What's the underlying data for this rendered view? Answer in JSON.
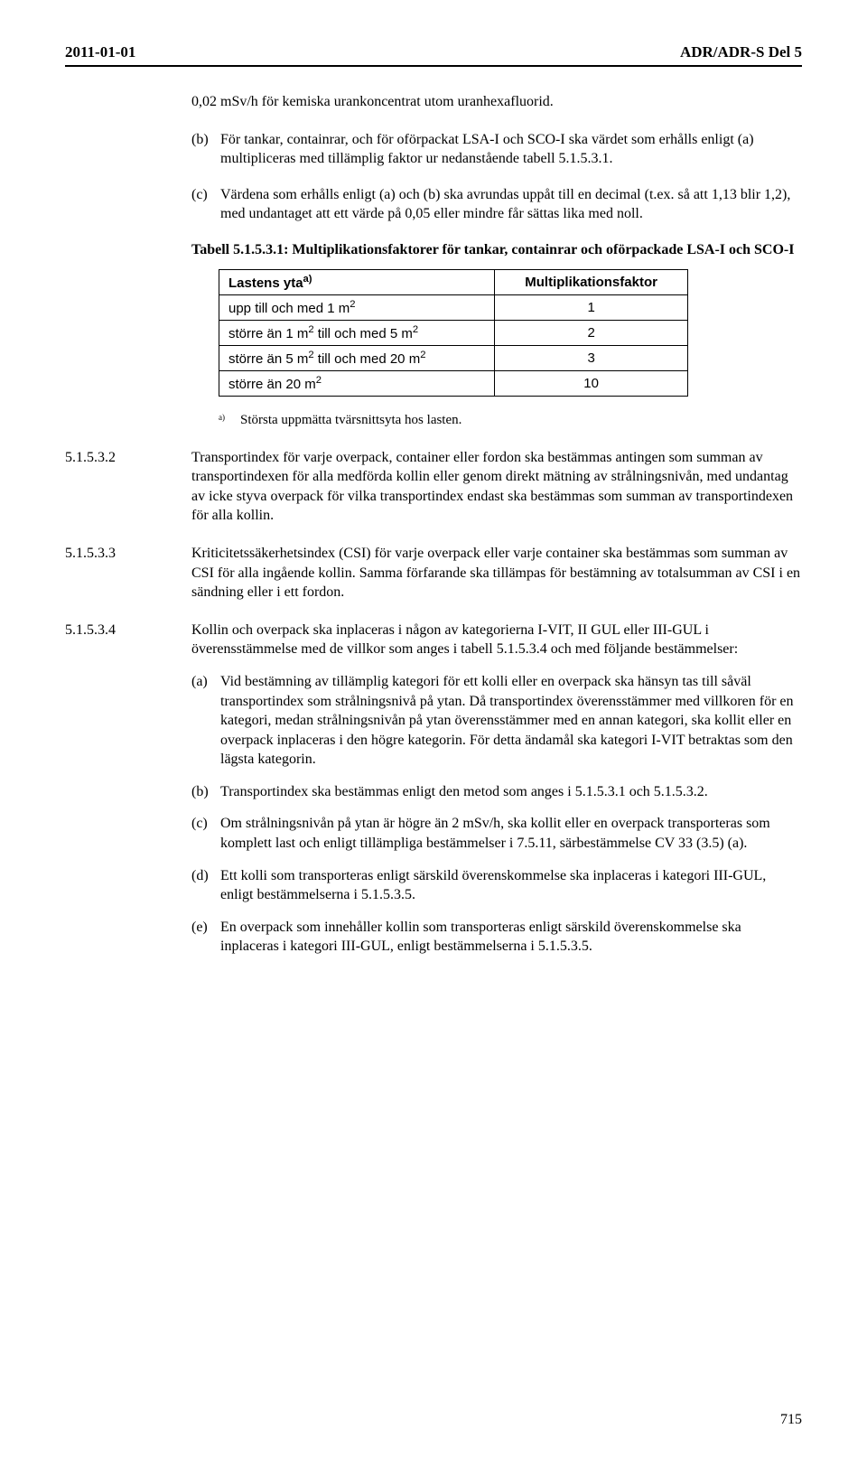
{
  "header": {
    "left": "2011-01-01",
    "right": "ADR/ADR-S Del 5"
  },
  "intro_line": "0,02 mSv/h för kemiska urankoncentrat utom uranhexafluorid.",
  "item_b": {
    "label": "(b)",
    "text": "För tankar, containrar, och för oförpackat LSA-I och SCO-I ska värdet som erhålls enligt (a) multipliceras med tillämplig faktor ur nedanstående tabell 5.1.5.3.1."
  },
  "item_c": {
    "label": "(c)",
    "text": "Värdena som erhålls enligt (a) och (b) ska avrundas uppåt till en decimal (t.ex. så att 1,13 blir 1,2), med undantaget att ett värde på 0,05 eller mindre får sättas lika med noll."
  },
  "table_title": "Tabell 5.1.5.3.1: Multiplikationsfaktorer för tankar, containrar och oförpackade LSA-I och SCO-I",
  "table": {
    "col1_header_base": "Lastens yta",
    "col1_header_sup": "a)",
    "col2_header": "Multiplikationsfaktor",
    "rows": [
      {
        "label_prefix": "upp till och med 1 m",
        "label_sup": "2",
        "label_suffix": "",
        "factor": "1"
      },
      {
        "label_prefix": "större än 1 m",
        "label_sup": "2",
        "label_mid": " till och med 5 m",
        "label_sup2": "2",
        "factor": "2"
      },
      {
        "label_prefix": "större än 5 m",
        "label_sup": "2",
        "label_mid": " till och med 20 m",
        "label_sup2": "2",
        "factor": "3"
      },
      {
        "label_prefix": "större än 20 m",
        "label_sup": "2",
        "label_suffix": "",
        "factor": "10"
      }
    ]
  },
  "footnote": {
    "sup": "a)",
    "text": "Största uppmätta tvärsnittsyta hos lasten."
  },
  "section_5_1_5_3_2": {
    "num": "5.1.5.3.2",
    "text": "Transportindex för varje overpack, container eller fordon ska bestämmas antingen som summan av transportindexen för alla medförda kollin eller genom direkt mätning av strålningsnivån, med undantag av icke styva overpack för vilka transportindex endast ska bestämmas som summan av transportindexen för alla kollin."
  },
  "section_5_1_5_3_3": {
    "num": "5.1.5.3.3",
    "text": "Kriticitetssäkerhetsindex (CSI) för varje overpack eller varje container ska bestämmas som summan av CSI för alla ingående kollin. Samma förfarande ska tillämpas för bestämning av totalsumman av CSI i en sändning eller i ett fordon."
  },
  "section_5_1_5_3_4": {
    "num": "5.1.5.3.4",
    "intro": "Kollin och overpack ska inplaceras i någon av kategorierna I-VIT, II GUL eller III-GUL i överensstämmelse med de villkor som anges i tabell 5.1.5.3.4 och med följande bestämmelser:",
    "subs": [
      {
        "label": "(a)",
        "text": "Vid bestämning av tillämplig kategori för ett kolli eller en overpack ska hänsyn tas till såväl transportindex som strålningsnivå på ytan. Då transportindex överensstämmer med villkoren för en kategori, medan strålningsnivån på ytan överensstämmer med en annan kategori, ska kollit eller en overpack inplaceras i den högre kategorin. För detta ändamål ska kategori I-VIT betraktas som den lägsta kategorin."
      },
      {
        "label": "(b)",
        "text": "Transportindex ska bestämmas enligt den metod som anges i 5.1.5.3.1 och 5.1.5.3.2."
      },
      {
        "label": "(c)",
        "text": "Om strålningsnivån på ytan är högre än 2 mSv/h, ska kollit eller en overpack transporteras som komplett last och enligt tillämpliga bestämmelser i 7.5.11, särbestämmelse CV 33 (3.5) (a)."
      },
      {
        "label": "(d)",
        "text": "Ett kolli som transporteras enligt särskild överenskommelse ska inplaceras i kategori III-GUL, enligt bestämmelserna i 5.1.5.3.5."
      },
      {
        "label": "(e)",
        "text": "En overpack som innehåller kollin som transporteras enligt särskild överenskommelse ska inplaceras i kategori III-GUL, enligt bestämmelserna i 5.1.5.3.5."
      }
    ]
  },
  "page_number": "715"
}
